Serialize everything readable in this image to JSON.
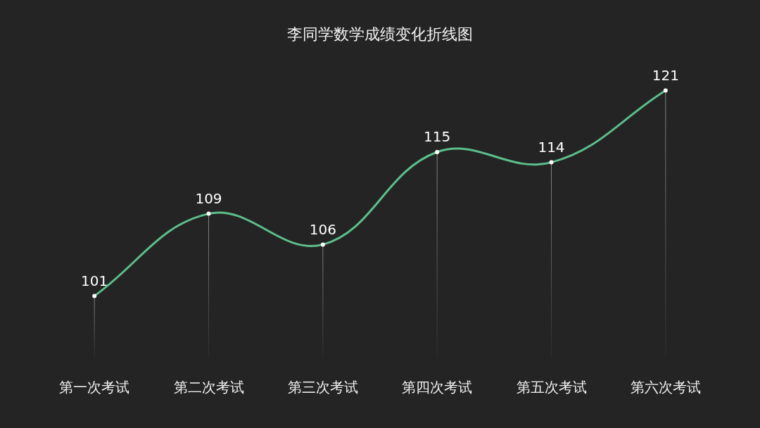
{
  "chart_data": {
    "type": "line",
    "title": "李同学数学成绩变化折线图",
    "categories": [
      "第一次考试",
      "第二次考试",
      "第三次考试",
      "第四次考试",
      "第五次考试",
      "第六次考试"
    ],
    "values": [
      101,
      109,
      106,
      115,
      114,
      121
    ],
    "color": "#5cbf8b",
    "tick_labels": "x",
    "grid": "x",
    "marker": "circle",
    "data_labels": true,
    "legend": false
  }
}
